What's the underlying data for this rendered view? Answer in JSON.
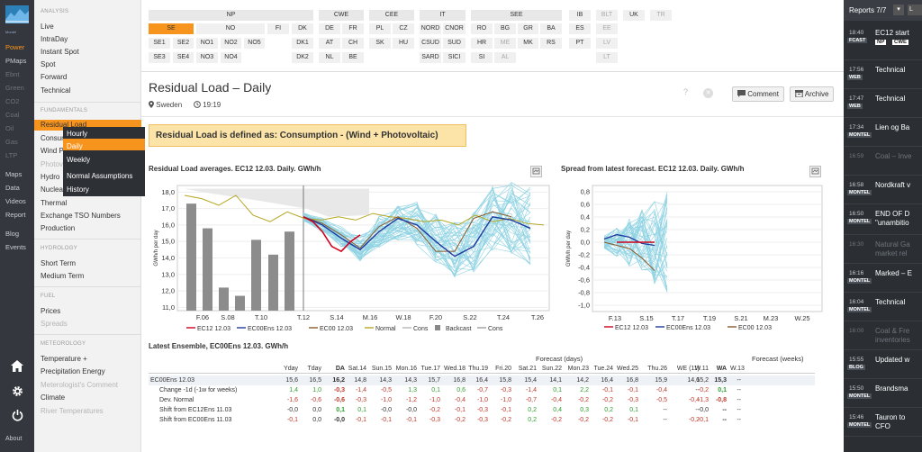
{
  "rail": {
    "items": [
      "Power",
      "PMaps",
      "Ebnt",
      "Green",
      "CO2",
      "Coal",
      "Oil",
      "Gas",
      "LTP",
      "Maps",
      "Data",
      "Videos",
      "Report",
      "Blog",
      "Events"
    ],
    "about": "About",
    "logo_text": "Montel"
  },
  "nav": {
    "analysis": "ANALYSIS",
    "analysis_items": [
      "Live",
      "IntraDay",
      "Instant Spot",
      "Spot",
      "Forward",
      "Technical"
    ],
    "fundamentals": "FUNDAMENTALS",
    "fundamentals_items": [
      "Residual Load",
      "Consumption",
      "Wind Power",
      "Photovoltaic",
      "Hydro",
      "Nuclear",
      "Thermal",
      "Exchange TSO Numbers",
      "Production"
    ],
    "hydrology": "HYDROLOGY",
    "hydrology_items": [
      "Short Term",
      "Medium Term"
    ],
    "fuel": "FUEL",
    "fuel_items": [
      "Prices",
      "Spreads"
    ],
    "meteorology": "METEOROLOGY",
    "meteorology_items": [
      "Temperature +",
      "Precipitation Energy",
      "Meterologist's Comment",
      "Climate",
      "River Temperatures"
    ]
  },
  "submenu": [
    "Hourly",
    "Daily",
    "Weekly",
    "Normal Assumptions",
    "History"
  ],
  "regions": {
    "np": {
      "head": "NP",
      "r1": [
        "SE",
        "NO",
        "FI",
        "DK"
      ],
      "r2": [
        "SE1",
        "SE2",
        "NO1",
        "NO2",
        "NO5",
        "DK1"
      ],
      "r3": [
        "SE3",
        "SE4",
        "NO3",
        "NO4",
        "DK2"
      ]
    },
    "cwe": {
      "head": "CWE",
      "cells": [
        "DE",
        "FR",
        "AT",
        "CH",
        "NL",
        "BE"
      ]
    },
    "cee": {
      "head": "CEE",
      "cells": [
        "PL",
        "CZ",
        "SK",
        "HU"
      ]
    },
    "it": {
      "head": "IT",
      "cells": [
        "NORD",
        "CNOR",
        "CSUD",
        "SUD",
        "SARD",
        "SICI"
      ]
    },
    "see": {
      "head": "SEE",
      "cells": [
        "RO",
        "BG",
        "GR",
        "BA",
        "HR",
        "ME",
        "MK",
        "RS",
        "SI",
        "AL"
      ]
    },
    "misc": {
      "cells": [
        "IB",
        "BLT",
        "UK",
        "TR",
        "ES",
        "EE",
        "PT",
        "LV",
        "LT"
      ]
    }
  },
  "page": {
    "title": "Residual Load – Daily",
    "location": "Sweden",
    "time": "19:19",
    "comment_btn": "Comment",
    "archive_btn": "Archive",
    "definition": "Residual Load is defined as: Consumption - (Wind + Photovoltaic)"
  },
  "chart_data": [
    {
      "type": "line",
      "title": "Residual Load averages. EC12 12.03. Daily. GWh/h",
      "ylabel": "GWh/h per day",
      "ylim": [
        10.8,
        18.4
      ],
      "yticks": [
        "18,0",
        "17,0",
        "16,0",
        "15,0",
        "14,0",
        "13,0",
        "12,0",
        "11,0"
      ],
      "xticks": [
        "F.06",
        "S.08",
        "T.10",
        "T.12",
        "S.14",
        "M.16",
        "W.18",
        "F.20",
        "S.22",
        "T.24",
        "T.26"
      ],
      "bars": [
        17.3,
        15.8,
        12.2,
        11.7,
        15.1,
        14.2,
        15.6
      ],
      "series": [
        {
          "name": "EC12 12.03",
          "color": "#d0021b",
          "values": [
            16.5,
            16.2,
            15.6,
            14.7,
            14.4,
            15.0,
            15.4
          ]
        },
        {
          "name": "EC00Ens 12.03",
          "color": "#1f3a9e",
          "values": [
            16.5,
            16.0,
            15.2,
            14.5,
            15.6,
            16.4,
            16.0,
            15.0,
            14.1,
            14.7,
            16.5,
            16.3,
            15.8
          ]
        },
        {
          "name": "EC00 12.03",
          "color": "#8b5a2b",
          "values": [
            16.5,
            16.1,
            15.4,
            14.6,
            15.9,
            16.5,
            15.8,
            14.4,
            14.4,
            16.4,
            16.8,
            16.5
          ]
        },
        {
          "name": "Normal",
          "color": "#b5a620",
          "values": [
            17.8,
            17.6,
            17.2,
            17.8,
            16.6,
            16.2,
            16.8,
            16.4,
            16.3,
            16.5,
            16.3,
            16.7,
            16.5,
            16.4,
            16.2,
            16.3,
            16.0,
            16.6,
            16.2,
            16.4,
            16.1,
            16.0
          ]
        }
      ],
      "legend": [
        "EC12 12.03",
        "EC00Ens 12.03",
        "EC00 12.03",
        "Normal",
        "Cons",
        "Backcast",
        "Cons"
      ]
    },
    {
      "type": "line",
      "title": "Spread from latest forecast. EC12 12.03. Daily. GWh/h",
      "ylabel": "GWh/h per day",
      "ylim": [
        -1.1,
        0.9
      ],
      "yticks": [
        "0,8",
        "0,6",
        "0,4",
        "0,2",
        "0,0",
        "-0,2",
        "-0,4",
        "-0,6",
        "-0,8",
        "-1,0"
      ],
      "xticks": [
        "F.13",
        "S.15",
        "T.17",
        "T.19",
        "S.21",
        "M.23",
        "W.25"
      ],
      "series": [
        {
          "name": "EC12 12.03",
          "color": "#d0021b",
          "values": [
            0.0,
            0.0,
            0.0,
            0.0
          ]
        },
        {
          "name": "EC00Ens 12.03",
          "color": "#1f3a9e",
          "values": [
            0.05,
            0.12,
            0.08,
            -0.02,
            -0.05
          ]
        },
        {
          "name": "EC00 12.03",
          "color": "#8b5a2b",
          "values": [
            0.0,
            -0.05,
            -0.1,
            -0.25,
            -0.45
          ]
        }
      ],
      "legend": [
        "EC12 12.03",
        "EC00Ens 12.03",
        "EC00 12.03"
      ]
    }
  ],
  "table": {
    "title": "Latest Ensemble, EC00Ens 12.03. GWh/h",
    "days_header": "Forecast (days)",
    "weeks_header": "Forecast (weeks)",
    "columns": [
      "Yday",
      "Tday",
      "DA",
      "Sat.14",
      "Sun.15",
      "Mon.16",
      "Tue.17",
      "Wed.18",
      "Thu.19",
      "Fri.20",
      "Sat.21",
      "Sun.22",
      "Mon.23",
      "Tue.24",
      "Wed.25",
      "Thu.26",
      "WE (11)",
      "W.11",
      "WA",
      "W.13"
    ],
    "rows": [
      {
        "label": "EC00Ens 12.03",
        "values": [
          "15,6",
          "16,5",
          "16,2",
          "14,8",
          "14,3",
          "14,3",
          "15,7",
          "16,8",
          "16,4",
          "15,8",
          "15,4",
          "14,1",
          "14,2",
          "16,4",
          "16,8",
          "15,9",
          "14,6",
          "15,2",
          "15,3",
          "--"
        ]
      },
      {
        "label": "Change -1d (-1w for weeks)",
        "values": [
          "1,4",
          "1,0",
          "-0,3",
          "-1,4",
          "-0,5",
          "1,3",
          "0,1",
          "0,6",
          "-0,7",
          "-0,3",
          "-1,4",
          "0,1",
          "2,2",
          "-0,1",
          "-0,1",
          "-0,4",
          "--",
          "-0,2",
          "0,1",
          "--"
        ]
      },
      {
        "label": "Dev. Normal",
        "values": [
          "-1,6",
          "-0,6",
          "-0,6",
          "-0,3",
          "-1,0",
          "-1,2",
          "-1,0",
          "-0,4",
          "-1,0",
          "-1,0",
          "-0,7",
          "-0,4",
          "-0,2",
          "-0,2",
          "-0,3",
          "-0,5",
          "-0,4",
          "-1,3",
          "-0,8",
          "--"
        ]
      },
      {
        "label": "Shift from EC12Ens 11.03",
        "values": [
          "-0,0",
          "0,0",
          "0,1",
          "0,1",
          "-0,0",
          "-0,0",
          "-0,2",
          "-0,1",
          "-0,3",
          "-0,1",
          "0,2",
          "0,4",
          "0,3",
          "0,2",
          "0,1",
          "--",
          "--",
          "-0,0",
          "--",
          "--"
        ]
      },
      {
        "label": "Shift from EC00Ens 11.03",
        "values": [
          "-0,1",
          "0,0",
          "-0,0",
          "-0,1",
          "-0,1",
          "-0,1",
          "-0,3",
          "-0,2",
          "-0,3",
          "-0,2",
          "0,2",
          "-0,2",
          "-0,2",
          "-0,2",
          "-0,1",
          "--",
          "-0,2",
          "-0,1",
          "--",
          "--"
        ]
      }
    ]
  },
  "right": {
    "header": "Reports 7/7",
    "items": [
      {
        "time": "18:40",
        "badge": "FCAST",
        "text": "EC12 start",
        "chips": [
          "NP",
          "CWE"
        ]
      },
      {
        "time": "17:56",
        "badge": "WEB",
        "text": "Technical"
      },
      {
        "time": "17:47",
        "badge": "WEB",
        "text": "Technical"
      },
      {
        "time": "17:34",
        "badge": "MONTEL",
        "text": "Lien og Ba"
      },
      {
        "time": "16:59",
        "badge": "",
        "text": "Coal – Inve"
      },
      {
        "time": "16:58",
        "badge": "MONTEL",
        "text": "Nordkraft v"
      },
      {
        "time": "16:50",
        "badge": "MONTEL",
        "text": "END OF D",
        "text2": "\"unambitio"
      },
      {
        "time": "16:30",
        "badge": "",
        "text": "Natural Ga",
        "text2": "market rel"
      },
      {
        "time": "16:16",
        "badge": "MONTEL",
        "text": "Marked – E"
      },
      {
        "time": "16:04",
        "badge": "MONTEL",
        "text": "Technical"
      },
      {
        "time": "16:00",
        "badge": "",
        "text": "Coal & Fre",
        "text2": "inventories"
      },
      {
        "time": "15:55",
        "badge": "BLOG",
        "text": "Updated w"
      },
      {
        "time": "15:50",
        "badge": "MONTEL",
        "text": "Brandsma"
      },
      {
        "time": "15:46",
        "badge": "MONTEL",
        "text": "Tauron to",
        "text2": "CFO"
      }
    ]
  }
}
